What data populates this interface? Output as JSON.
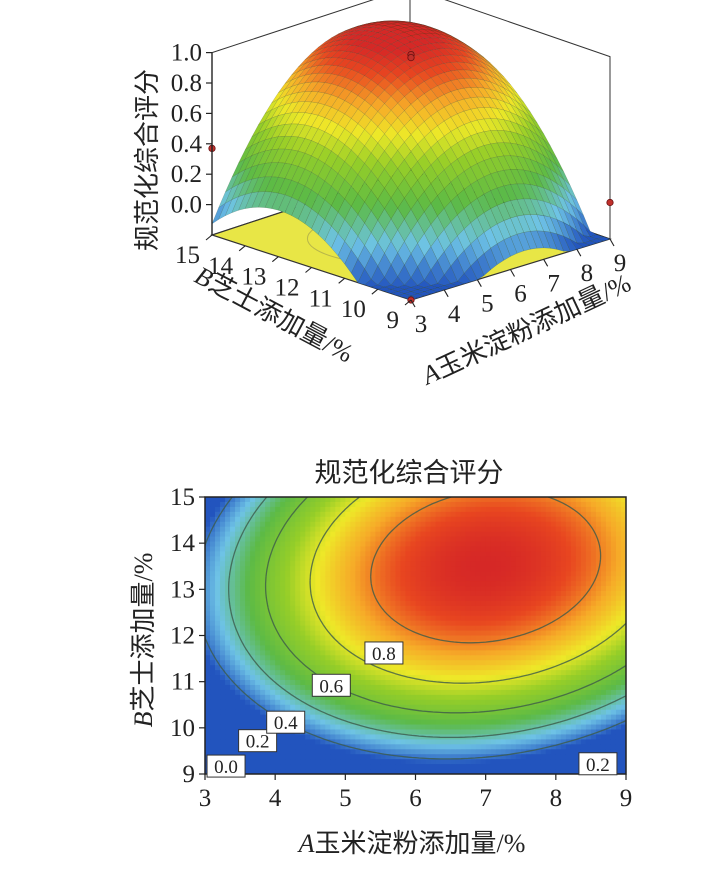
{
  "chart_data": [
    {
      "type": "surface",
      "title": "",
      "zlabel": "规范化综合评分",
      "xlabel_var": "A",
      "xlabel_text": "玉米淀粉添加量/%",
      "ylabel_var": "B",
      "ylabel_text": "芝士添加量/%",
      "x_ticks": [
        "3",
        "4",
        "5",
        "6",
        "7",
        "8",
        "9"
      ],
      "y_ticks": [
        "9",
        "10",
        "11",
        "12",
        "13",
        "14",
        "15"
      ],
      "z_ticks": [
        "0.0",
        "0.2",
        "0.4",
        "0.6",
        "0.8",
        "1.0"
      ],
      "xlim": [
        3,
        9
      ],
      "ylim": [
        9,
        15
      ],
      "zlim": [
        -0.2,
        1.0
      ],
      "peak": {
        "x": 7,
        "y": 13.5,
        "z": 1.0
      },
      "design_points": [
        {
          "x": 6,
          "y": 12,
          "z": 1.0
        },
        {
          "x": 6,
          "y": 12,
          "z": 0.98
        },
        {
          "x": 3,
          "y": 15,
          "z": 0.37
        },
        {
          "x": 9,
          "y": 9,
          "z": 0.04
        },
        {
          "x": 3,
          "y": 9,
          "z": -0.2
        }
      ]
    },
    {
      "type": "contour",
      "title": "规范化综合评分",
      "xlabel_var": "A",
      "xlabel_text": "玉米淀粉添加量/%",
      "ylabel_var": "B",
      "ylabel_text": "芝士添加量/%",
      "x_ticks": [
        "3",
        "4",
        "5",
        "6",
        "7",
        "8",
        "9"
      ],
      "y_ticks": [
        "9",
        "10",
        "11",
        "12",
        "13",
        "14",
        "15"
      ],
      "xlim": [
        3,
        9
      ],
      "ylim": [
        9,
        15
      ],
      "levels": [
        0.0,
        0.2,
        0.4,
        0.6,
        0.8
      ],
      "contour_labels": [
        {
          "text": "0.0",
          "x": 3.3,
          "y": 9.15
        },
        {
          "text": "0.2",
          "x": 3.75,
          "y": 9.7
        },
        {
          "text": "0.4",
          "x": 4.15,
          "y": 10.1
        },
        {
          "text": "0.6",
          "x": 4.8,
          "y": 10.9
        },
        {
          "text": "0.8",
          "x": 5.55,
          "y": 11.6
        },
        {
          "text": "0.2",
          "x": 8.6,
          "y": 9.2
        }
      ]
    }
  ]
}
